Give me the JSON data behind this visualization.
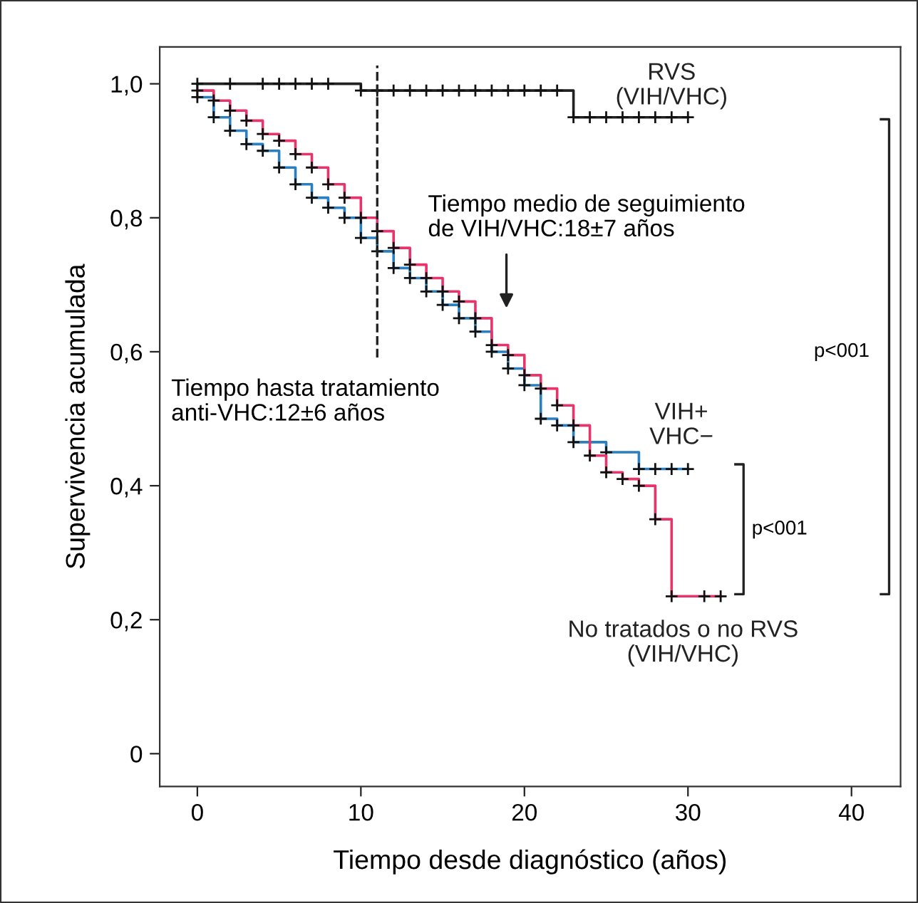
{
  "chart_data": {
    "type": "step",
    "xlabel": "Tiempo desde diagnóstico (años)",
    "ylabel": "Supervivencia acumulada",
    "xlim": [
      -2.3,
      43
    ],
    "ylim": [
      -0.049,
      1.055
    ],
    "xticks": [
      0,
      10,
      20,
      30,
      40
    ],
    "yticks": [
      {
        "value": 0,
        "label": "0"
      },
      {
        "value": 0.2,
        "label": "0,2"
      },
      {
        "value": 0.4,
        "label": "0,4"
      },
      {
        "value": 0.6,
        "label": "0,6"
      },
      {
        "value": 0.8,
        "label": "0,8"
      },
      {
        "value": 1.0,
        "label": "1,0"
      }
    ],
    "grid": false,
    "legend": false,
    "marker": "cross",
    "line_style": "solid",
    "series": [
      {
        "name": "RVS\n(VIH/VHC)",
        "color": "#222222",
        "x": [
          0,
          2,
          4,
          5,
          6,
          7,
          8,
          10,
          11,
          12,
          13,
          14,
          15,
          16,
          17,
          18,
          19,
          20,
          21,
          22,
          23,
          24,
          25,
          26,
          27,
          28,
          29,
          30
        ],
        "values": [
          1.0,
          1.0,
          1.0,
          1.0,
          1.0,
          1.0,
          1.0,
          0.99,
          0.99,
          0.99,
          0.99,
          0.99,
          0.99,
          0.99,
          0.99,
          0.99,
          0.99,
          0.99,
          0.99,
          0.99,
          0.95,
          0.95,
          0.95,
          0.95,
          0.95,
          0.95,
          0.95,
          0.95
        ]
      },
      {
        "name": "VIH+\nVHC−",
        "color": "#2a7fc0",
        "x": [
          0,
          1,
          2,
          3,
          4,
          5,
          6,
          7,
          8,
          9,
          10,
          11,
          12,
          13,
          14,
          15,
          16,
          17,
          18,
          19,
          20,
          21,
          22,
          23,
          25,
          27,
          28,
          29,
          30
        ],
        "values": [
          0.98,
          0.95,
          0.93,
          0.91,
          0.9,
          0.875,
          0.85,
          0.83,
          0.815,
          0.8,
          0.77,
          0.75,
          0.725,
          0.71,
          0.69,
          0.67,
          0.65,
          0.63,
          0.6,
          0.575,
          0.55,
          0.5,
          0.49,
          0.465,
          0.45,
          0.425,
          0.425,
          0.425,
          0.425
        ]
      },
      {
        "name": "No tratados o no RVS\n(VIH/VHC)",
        "color": "#e8336b",
        "x": [
          0,
          1,
          2,
          3,
          4,
          5,
          6,
          7,
          8,
          9,
          10,
          11,
          12,
          13,
          14,
          15,
          16,
          17,
          18,
          19,
          20,
          21,
          22,
          23,
          24,
          25,
          26,
          27,
          28,
          29,
          31,
          32
        ],
        "values": [
          0.99,
          0.975,
          0.96,
          0.945,
          0.925,
          0.915,
          0.895,
          0.875,
          0.85,
          0.83,
          0.8,
          0.78,
          0.755,
          0.73,
          0.71,
          0.69,
          0.675,
          0.65,
          0.61,
          0.595,
          0.565,
          0.545,
          0.52,
          0.49,
          0.445,
          0.42,
          0.41,
          0.4,
          0.35,
          0.235,
          0.235,
          0.235
        ]
      }
    ],
    "ref_lines": [
      {
        "axis": "x",
        "value": 11,
        "color": "#222222",
        "line_style": "dashed"
      }
    ],
    "annotations": [
      "Tiempo hasta tratamiento\nanti-VHC:12±6 años",
      "Tiempo medio de seguimiento\nde VIH/VHC:18±7 años",
      "p<001",
      "p<001"
    ]
  }
}
